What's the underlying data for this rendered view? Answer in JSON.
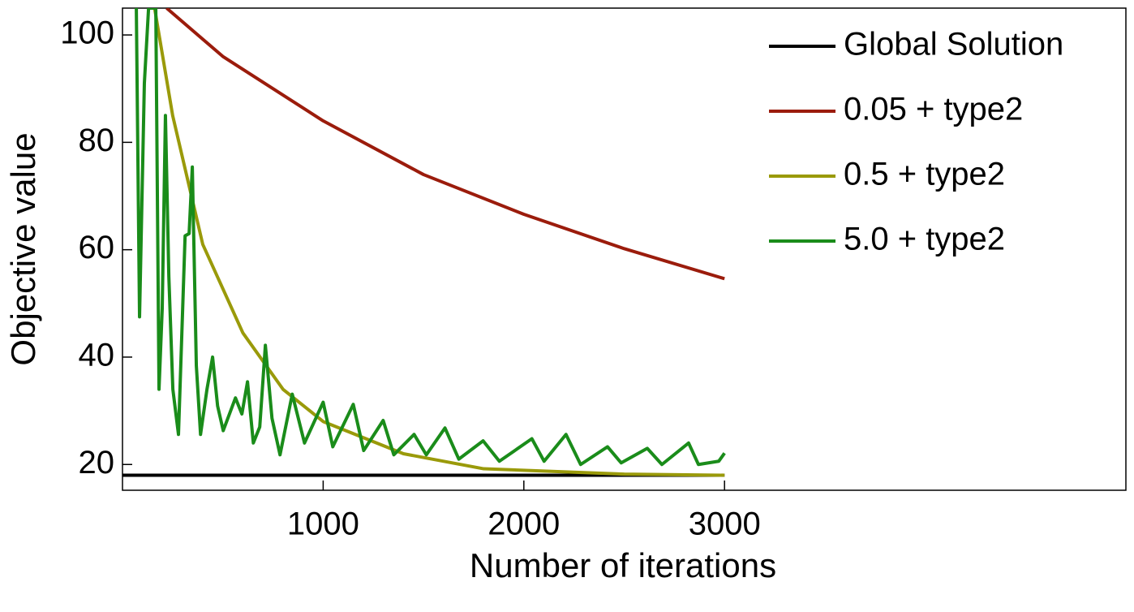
{
  "chart_data": {
    "type": "line",
    "x_label": "Number of iterations",
    "y_label": "Objective value",
    "xlim": [
      0,
      5000
    ],
    "ylim": [
      15.2,
      105
    ],
    "xticks": [
      1000,
      2000,
      3000
    ],
    "yticks": [
      20,
      40,
      60,
      80,
      100
    ],
    "legend": "top-right",
    "series": [
      {
        "name": "Global Solution",
        "color": "#000000",
        "x": [
          0,
          3000
        ],
        "values": [
          18,
          18
        ]
      },
      {
        "name": "0.05 + type2",
        "color": "#9b1c0c",
        "x": [
          220,
          500,
          1000,
          1500,
          2000,
          2500,
          3000
        ],
        "values": [
          105,
          96,
          84,
          74,
          66.6,
          60.2,
          54.6
        ]
      },
      {
        "name": "0.5 + type2",
        "color": "#9a9a0a",
        "x": [
          160,
          250,
          400,
          600,
          800,
          1000,
          1400,
          1800,
          2500,
          3000
        ],
        "values": [
          105,
          85,
          61,
          44.5,
          34,
          28,
          22,
          19.2,
          18.2,
          18
        ]
      },
      {
        "name": "5.0 + type2",
        "color": "#1a8c1a",
        "x": [
          69,
          85,
          109,
          130,
          166,
          182,
          198,
          214,
          231,
          251,
          279,
          312,
          332,
          348,
          368,
          389,
          421,
          449,
          474,
          502,
          563,
          595,
          623,
          652,
          684,
          712,
          745,
          785,
          846,
          907,
          1000,
          1048,
          1150,
          1202,
          1299,
          1352,
          1453,
          1514,
          1607,
          1676,
          1797,
          1878,
          2040,
          2101,
          2210,
          2283,
          2417,
          2485,
          2615,
          2688,
          2821,
          2870,
          2971,
          3000
        ],
        "values": [
          105,
          47.5,
          91,
          105,
          105,
          34,
          49,
          85,
          55,
          34,
          25.6,
          62.6,
          63,
          75.4,
          38.4,
          25.6,
          34,
          40,
          30.9,
          26.3,
          32.4,
          29.4,
          35.4,
          24,
          27,
          42.2,
          28.6,
          21.8,
          33.1,
          24,
          31.6,
          23.3,
          31.2,
          22.6,
          28.2,
          21.8,
          25.6,
          21.8,
          26.8,
          21,
          24.4,
          20.6,
          24.8,
          20.6,
          25.6,
          20,
          23.3,
          20.3,
          23,
          20,
          24,
          20,
          20.6,
          22.1
        ]
      }
    ]
  }
}
